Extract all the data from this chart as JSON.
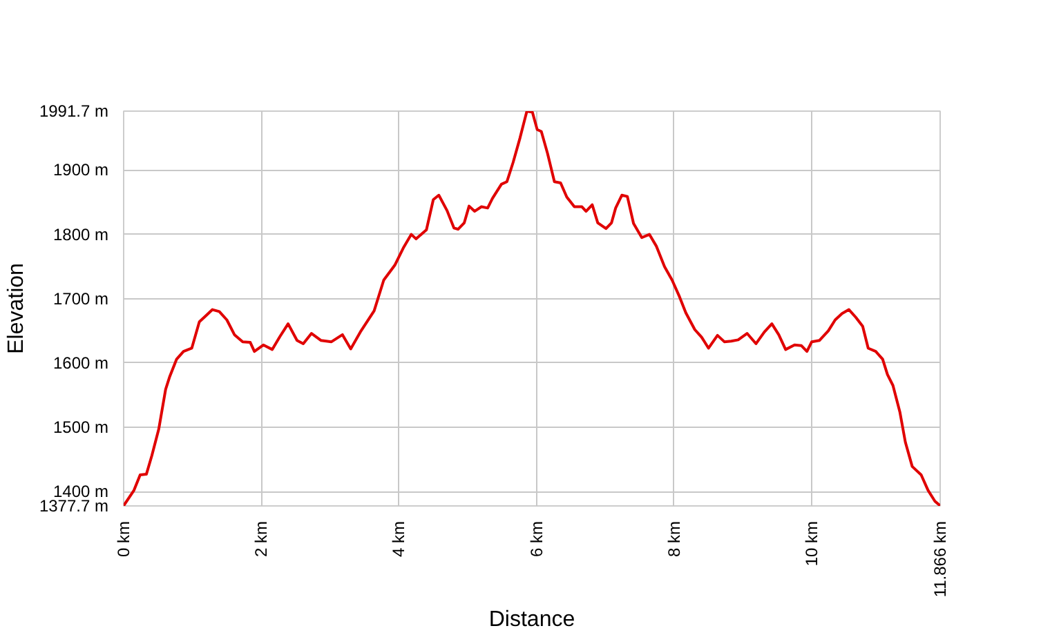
{
  "chart_data": {
    "type": "line",
    "xlabel": "Distance",
    "ylabel": "Elevation",
    "grid": true,
    "xlim": [
      0,
      11.866
    ],
    "ylim": [
      1377.7,
      1991.7
    ],
    "xticks": [
      {
        "value": 0,
        "label": "0 km"
      },
      {
        "value": 2,
        "label": "2 km"
      },
      {
        "value": 4,
        "label": "4 km"
      },
      {
        "value": 6,
        "label": "6 km"
      },
      {
        "value": 8,
        "label": "8 km"
      },
      {
        "value": 10,
        "label": "10 km"
      },
      {
        "value": 11.866,
        "label": "11.866 km"
      }
    ],
    "yticks": [
      {
        "value": 1377.7,
        "label": "1377.7 m"
      },
      {
        "value": 1400,
        "label": "1400 m"
      },
      {
        "value": 1500,
        "label": "1500 m"
      },
      {
        "value": 1600,
        "label": "1600 m"
      },
      {
        "value": 1700,
        "label": "1700 m"
      },
      {
        "value": 1800,
        "label": "1800 m"
      },
      {
        "value": 1900,
        "label": "1900 m"
      },
      {
        "value": 1991.7,
        "label": "1991.7 m"
      }
    ],
    "x": [
      0,
      0.15,
      0.24,
      0.33,
      0.41,
      0.51,
      0.61,
      0.67,
      0.77,
      0.87,
      0.99,
      1.1,
      1.2,
      1.29,
      1.39,
      1.5,
      1.61,
      1.73,
      1.84,
      1.9,
      2.03,
      2.16,
      2.27,
      2.39,
      2.52,
      2.61,
      2.73,
      2.87,
      3.02,
      3.18,
      3.3,
      3.45,
      3.64,
      3.78,
      3.94,
      4.07,
      4.18,
      4.25,
      4.4,
      4.5,
      4.58,
      4.7,
      4.8,
      4.86,
      4.95,
      5.02,
      5.1,
      5.2,
      5.29,
      5.36,
      5.49,
      5.57,
      5.66,
      5.76,
      5.86,
      5.94,
      6.01,
      6.07,
      6.16,
      6.26,
      6.35,
      6.44,
      6.55,
      6.66,
      6.72,
      6.81,
      6.89,
      7.01,
      7.09,
      7.15,
      7.24,
      7.32,
      7.41,
      7.53,
      7.64,
      7.74,
      7.86,
      7.97,
      8.07,
      8.17,
      8.3,
      8.4,
      8.5,
      8.63,
      8.73,
      8.83,
      8.93,
      9.06,
      9.19,
      9.31,
      9.42,
      9.52,
      9.62,
      9.75,
      9.85,
      9.93,
      10.0,
      10.11,
      10.24,
      10.34,
      10.44,
      10.54,
      10.64,
      10.74,
      10.82,
      10.93,
      11.03,
      11.1,
      11.18,
      11.28,
      11.36,
      11.46,
      11.59,
      11.69,
      11.79,
      11.866
    ],
    "series": [
      {
        "color": "#e00000",
        "values": [
          1378,
          1402,
          1426,
          1427,
          1456,
          1497,
          1559,
          1579,
          1606,
          1618,
          1623,
          1664,
          1674,
          1683,
          1680,
          1667,
          1644,
          1633,
          1632,
          1618,
          1628,
          1621,
          1641,
          1661,
          1635,
          1630,
          1646,
          1635,
          1633,
          1644,
          1622,
          1650,
          1681,
          1729,
          1752,
          1780,
          1800,
          1793,
          1807,
          1854,
          1861,
          1837,
          1810,
          1808,
          1818,
          1844,
          1836,
          1843,
          1841,
          1856,
          1878,
          1882,
          1912,
          1950,
          1991.7,
          1990,
          1963,
          1960,
          1926,
          1882,
          1880,
          1858,
          1843,
          1843,
          1836,
          1846,
          1818,
          1809,
          1818,
          1841,
          1861,
          1859,
          1817,
          1795,
          1800,
          1782,
          1750,
          1729,
          1705,
          1678,
          1652,
          1640,
          1623,
          1643,
          1633,
          1634,
          1636,
          1646,
          1630,
          1648,
          1661,
          1644,
          1621,
          1628,
          1627,
          1618,
          1633,
          1635,
          1650,
          1667,
          1677,
          1683,
          1671,
          1657,
          1623,
          1618,
          1606,
          1582,
          1565,
          1524,
          1477,
          1439,
          1426,
          1402,
          1385,
          1378
        ]
      }
    ]
  }
}
